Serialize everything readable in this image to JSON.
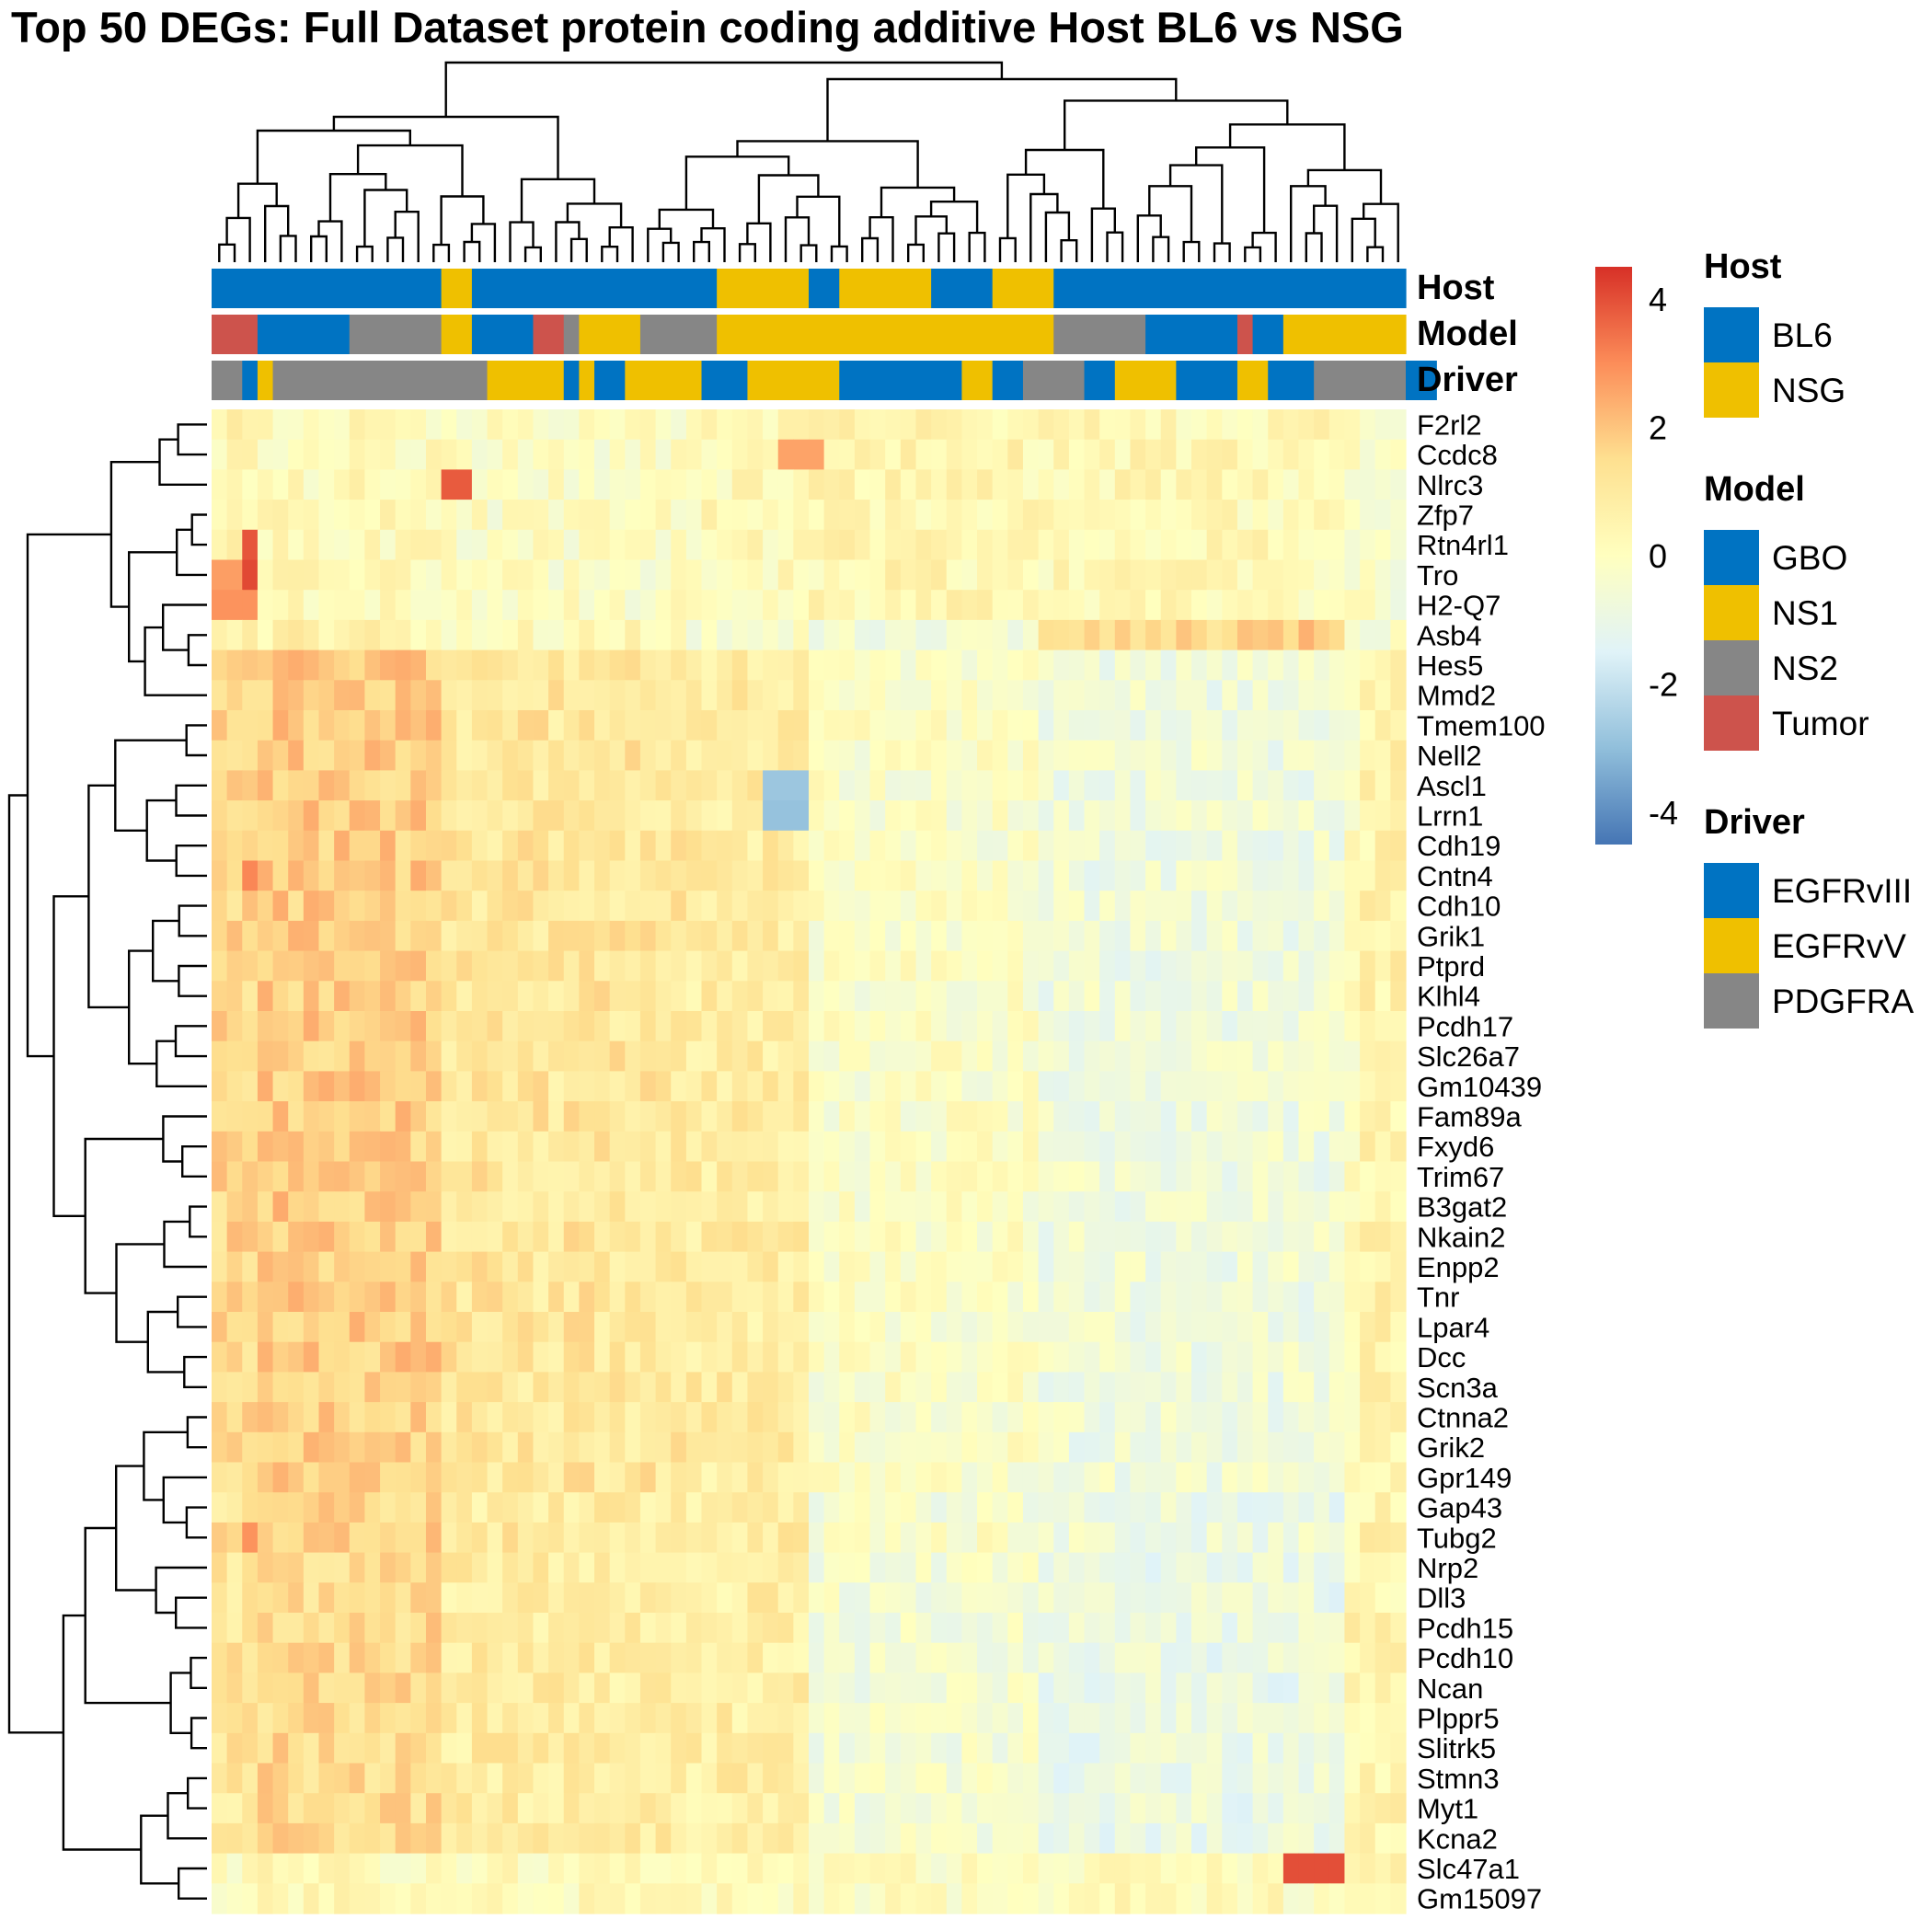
{
  "title": "Top 50 DEGs: Full Dataset protein coding additive Host BL6 vs NSG",
  "chart_data": {
    "type": "heatmap",
    "n_samples": 78,
    "colorbar": {
      "ticks": [
        4,
        2,
        0,
        -2,
        -4
      ],
      "min": -4.5,
      "max": 4.5,
      "colors": [
        "#4575b4",
        "#91bfdb",
        "#e0f3f8",
        "#ffffbf",
        "#fee090",
        "#fc8d59",
        "#d73027"
      ]
    },
    "annotation_tracks": [
      {
        "name": "Host",
        "runs": [
          [
            "BL6",
            15
          ],
          [
            "NSG",
            2
          ],
          [
            "BL6",
            16
          ],
          [
            "NSG",
            6
          ],
          [
            "BL6",
            2
          ],
          [
            "NSG",
            6
          ],
          [
            "BL6",
            4
          ],
          [
            "NSG",
            4
          ],
          [
            "BL6",
            23
          ]
        ]
      },
      {
        "name": "Model",
        "runs": [
          [
            "Tumor",
            3
          ],
          [
            "GBO",
            6
          ],
          [
            "NS2",
            6
          ],
          [
            "NS1",
            2
          ],
          [
            "GBO",
            4
          ],
          [
            "Tumor",
            2
          ],
          [
            "NS2",
            1
          ],
          [
            "NS1",
            4
          ],
          [
            "NS2",
            5
          ],
          [
            "NS1",
            22
          ],
          [
            "NS2",
            6
          ],
          [
            "GBO",
            6
          ],
          [
            "Tumor",
            1
          ],
          [
            "GBO",
            2
          ],
          [
            "NS1",
            8
          ]
        ]
      },
      {
        "name": "Driver",
        "runs": [
          [
            "PDGFRA",
            2
          ],
          [
            "EGFRvIII",
            1
          ],
          [
            "EGFRvV",
            1
          ],
          [
            "PDGFRA",
            14
          ],
          [
            "EGFRvV",
            5
          ],
          [
            "EGFRvIII",
            1
          ],
          [
            "EGFRvV",
            1
          ],
          [
            "EGFRvIII",
            2
          ],
          [
            "EGFRvV",
            5
          ],
          [
            "EGFRvIII",
            3
          ],
          [
            "EGFRvV",
            6
          ],
          [
            "EGFRvIII",
            8
          ],
          [
            "EGFRvV",
            2
          ],
          [
            "EGFRvIII",
            2
          ],
          [
            "PDGFRA",
            4
          ],
          [
            "EGFRvIII",
            2
          ],
          [
            "EGFRvV",
            4
          ],
          [
            "EGFRvIII",
            4
          ],
          [
            "EGFRvV",
            2
          ],
          [
            "EGFRvIII",
            3
          ],
          [
            "PDGFRA",
            6
          ],
          [
            "EGFRvIII",
            2
          ]
        ]
      }
    ],
    "legends": [
      {
        "title": "Host",
        "items": [
          {
            "label": "BL6",
            "color": "#0073c2"
          },
          {
            "label": "NSG",
            "color": "#efc000"
          }
        ]
      },
      {
        "title": "Model",
        "items": [
          {
            "label": "GBO",
            "color": "#0073c2"
          },
          {
            "label": "NS1",
            "color": "#efc000"
          },
          {
            "label": "NS2",
            "color": "#868686"
          },
          {
            "label": "Tumor",
            "color": "#cd534c"
          }
        ]
      },
      {
        "title": "Driver",
        "items": [
          {
            "label": "EGFRvIII",
            "color": "#0073c2"
          },
          {
            "label": "EGFRvV",
            "color": "#efc000"
          },
          {
            "label": "PDGFRA",
            "color": "#868686"
          }
        ]
      }
    ],
    "genes": [
      "F2rl2",
      "Ccdc8",
      "Nlrc3",
      "Zfp7",
      "Rtn4rl1",
      "Tro",
      "H2-Q7",
      "Asb4",
      "Hes5",
      "Mmd2",
      "Tmem100",
      "Nell2",
      "Ascl1",
      "Lrrn1",
      "Cdh19",
      "Cntn4",
      "Cdh10",
      "Grik1",
      "Ptprd",
      "Klhl4",
      "Pcdh17",
      "Slc26a7",
      "Gm10439",
      "Fam89a",
      "Fxyd6",
      "Trim67",
      "B3gat2",
      "Nkain2",
      "Enpp2",
      "Tnr",
      "Lpar4",
      "Dcc",
      "Scn3a",
      "Ctnna2",
      "Grik2",
      "Gpr149",
      "Gap43",
      "Tubg2",
      "Nrp2",
      "Dll3",
      "Pcdh15",
      "Pcdh10",
      "Ncan",
      "Plppr5",
      "Slitrk5",
      "Stmn3",
      "Myt1",
      "Kcna2",
      "Slc47a1",
      "Gm15097"
    ],
    "row_groups": [
      0,
      0,
      0,
      0,
      0,
      0,
      0,
      3,
      1,
      1,
      1,
      1,
      1,
      1,
      1,
      1,
      1,
      1,
      1,
      1,
      1,
      1,
      1,
      1,
      1,
      1,
      1,
      1,
      1,
      1,
      1,
      1,
      1,
      1,
      1,
      1,
      2,
      1,
      2,
      2,
      2,
      2,
      2,
      2,
      2,
      2,
      2,
      2,
      4,
      4
    ],
    "group_block_means": [
      [
        0.4,
        0.2,
        -0.1,
        0.2,
        0.4,
        0.3,
        -0.1,
        -0.3
      ],
      [
        1.6,
        1.8,
        1.1,
        0.9,
        -0.2,
        -0.7,
        -0.1,
        0.6
      ],
      [
        1.1,
        1.5,
        0.9,
        0.8,
        -0.5,
        -0.9,
        0.5,
        0.5
      ],
      [
        0.5,
        0.6,
        0.2,
        -0.3,
        -0.6,
        1.7,
        0.0,
        -0.4
      ],
      [
        0.1,
        0.2,
        0.1,
        0.2,
        0.0,
        0.1,
        0.0,
        0.6
      ]
    ],
    "block_sample_counts": [
      3,
      12,
      16,
      8,
      15,
      20,
      1,
      3
    ],
    "highlights": [
      {
        "gene": "Nlrc3",
        "sample_start": 15,
        "sample_end": 16,
        "value": 3.8
      },
      {
        "gene": "Rtn4rl1",
        "sample_start": 2,
        "sample_end": 2,
        "value": 3.9
      },
      {
        "gene": "Tro",
        "sample_start": 2,
        "sample_end": 2,
        "value": 4.1
      },
      {
        "gene": "Tro",
        "sample_start": 0,
        "sample_end": 1,
        "value": 2.7
      },
      {
        "gene": "H2-Q7",
        "sample_start": 0,
        "sample_end": 2,
        "value": 2.9
      },
      {
        "gene": "Slc47a1",
        "sample_start": 70,
        "sample_end": 73,
        "value": 4.0
      },
      {
        "gene": "Ccdc8",
        "sample_start": 37,
        "sample_end": 39,
        "value": 2.6
      },
      {
        "gene": "Ascl1",
        "sample_start": 36,
        "sample_end": 38,
        "value": -2.8
      },
      {
        "gene": "Lrrn1",
        "sample_start": 36,
        "sample_end": 38,
        "value": -2.9
      },
      {
        "gene": "Cntn4",
        "sample_start": 2,
        "sample_end": 2,
        "value": 3.1
      },
      {
        "gene": "Tubg2",
        "sample_start": 2,
        "sample_end": 2,
        "value": 2.9
      }
    ]
  }
}
